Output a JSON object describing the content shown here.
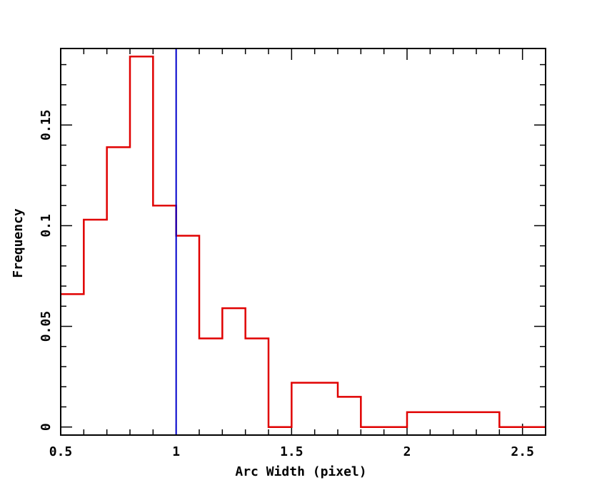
{
  "chart_data": {
    "type": "histogram",
    "title": "",
    "xlabel": "Arc Width (pixel)",
    "ylabel": "Frequency",
    "xlim": [
      0.5,
      2.6
    ],
    "ylim": [
      -0.004,
      0.188
    ],
    "x_ticks": [
      0.5,
      1,
      1.5,
      2,
      2.5
    ],
    "x_tick_labels": [
      "0.5",
      "1",
      "1.5",
      "2",
      "2.5"
    ],
    "y_ticks": [
      0,
      0.05,
      0.1,
      0.15
    ],
    "y_tick_labels": [
      "0",
      "0.05",
      "0.1",
      "0.15"
    ],
    "grid": false,
    "series": [
      {
        "color": "#e00000",
        "bins": [
          {
            "x0": 0.5,
            "x1": 0.6,
            "value": 0.066
          },
          {
            "x0": 0.6,
            "x1": 0.7,
            "value": 0.103
          },
          {
            "x0": 0.7,
            "x1": 0.8,
            "value": 0.139
          },
          {
            "x0": 0.8,
            "x1": 0.9,
            "value": 0.184
          },
          {
            "x0": 0.9,
            "x1": 1.0,
            "value": 0.11
          },
          {
            "x0": 1.0,
            "x1": 1.1,
            "value": 0.095
          },
          {
            "x0": 1.1,
            "x1": 1.2,
            "value": 0.044
          },
          {
            "x0": 1.2,
            "x1": 1.3,
            "value": 0.059
          },
          {
            "x0": 1.3,
            "x1": 1.4,
            "value": 0.044
          },
          {
            "x0": 1.4,
            "x1": 1.5,
            "value": 0.0
          },
          {
            "x0": 1.5,
            "x1": 1.6,
            "value": 0.022
          },
          {
            "x0": 1.6,
            "x1": 1.7,
            "value": 0.022
          },
          {
            "x0": 1.7,
            "x1": 1.8,
            "value": 0.015
          },
          {
            "x0": 1.8,
            "x1": 1.9,
            "value": 0.0
          },
          {
            "x0": 1.9,
            "x1": 2.0,
            "value": 0.0
          },
          {
            "x0": 2.0,
            "x1": 2.4,
            "value": 0.0074
          },
          {
            "x0": 2.4,
            "x1": 2.6,
            "value": 0.0
          }
        ]
      }
    ],
    "vertical_line": {
      "x": 1.0,
      "color": "#0000cc"
    }
  }
}
